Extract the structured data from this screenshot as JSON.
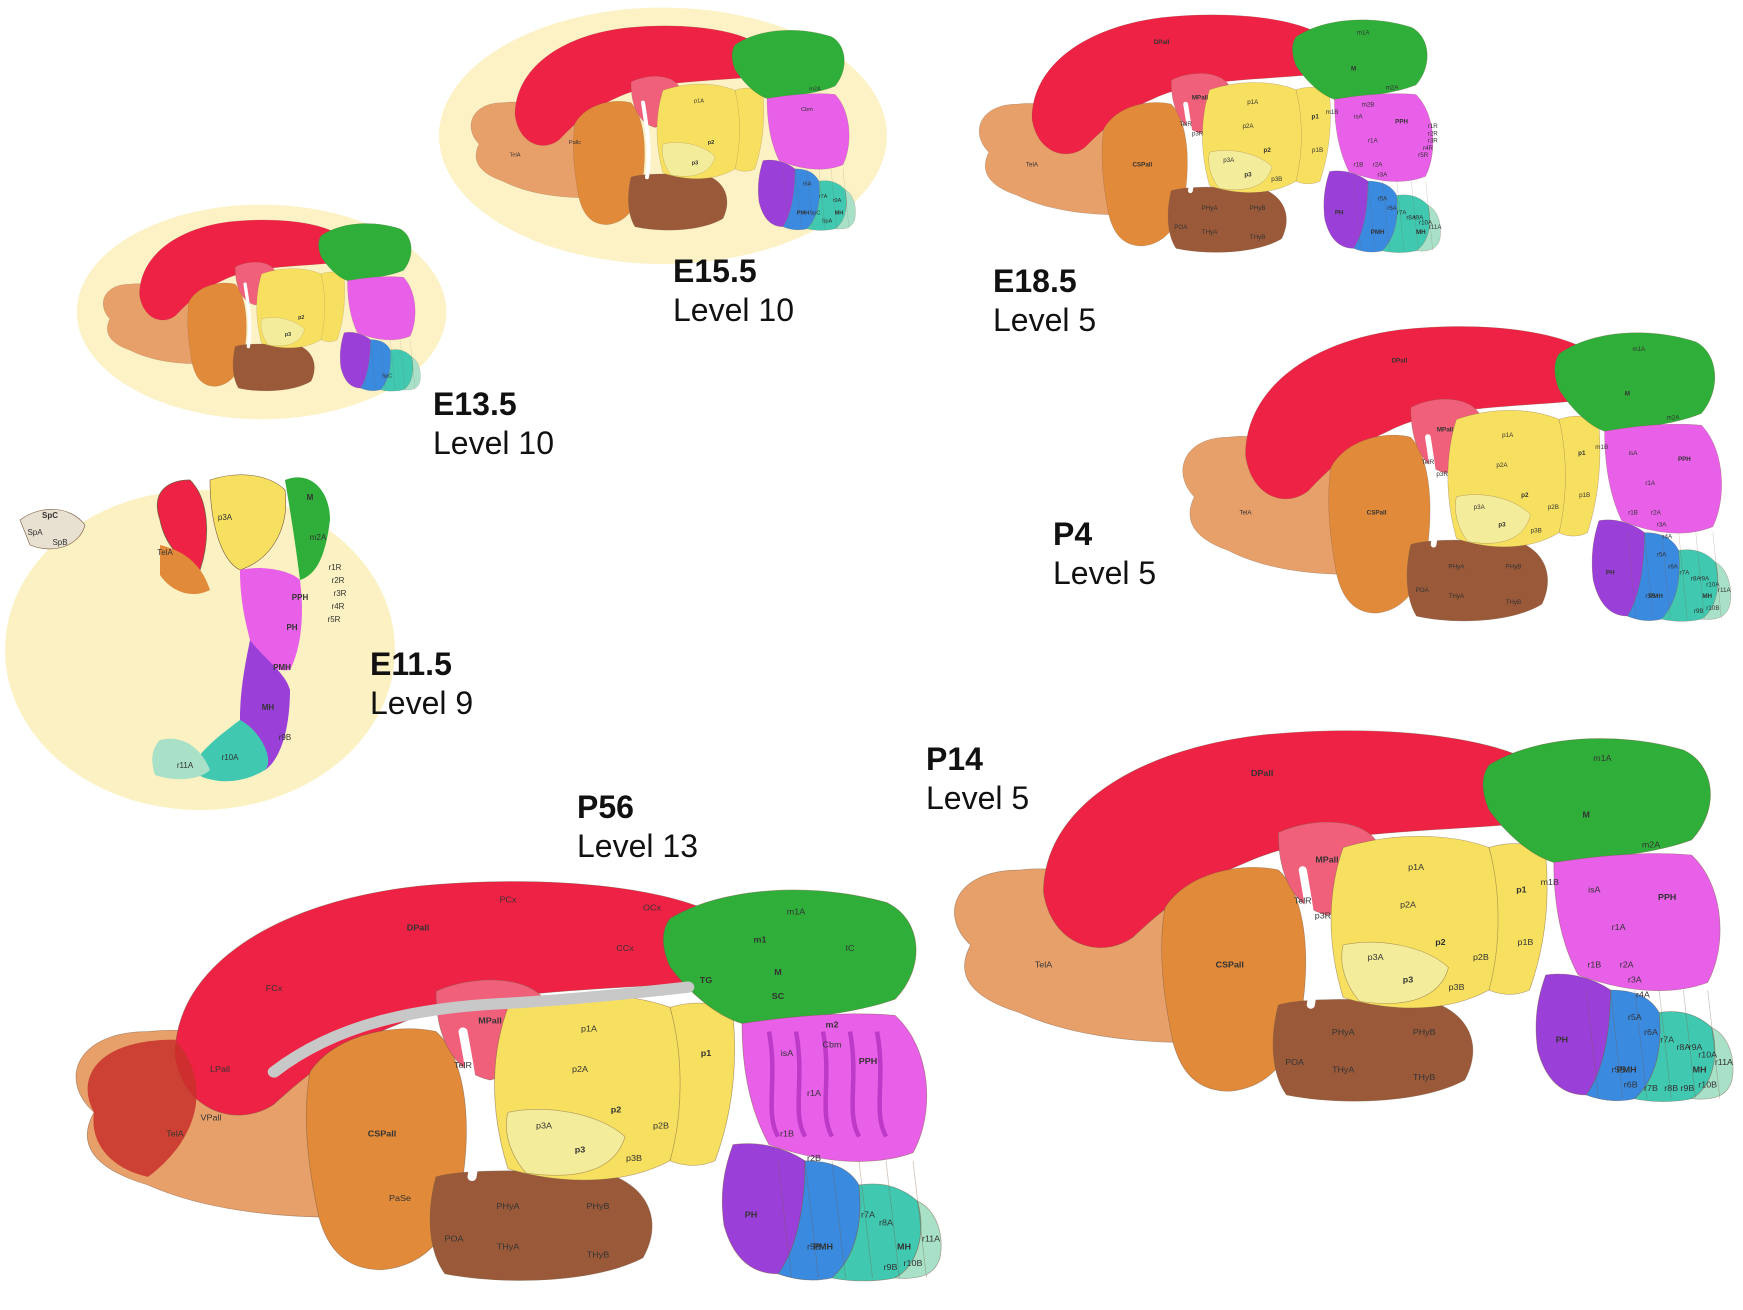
{
  "colors": {
    "pallium_red": "#ee2244",
    "medial_pallium": "#f0607a",
    "subpallium_orange": "#e08a3a",
    "telencephalon_tan": "#e8a06a",
    "hypothalamus_brown": "#9a5a3a",
    "diencephalon_yellow": "#f7e060",
    "prosomere_pale": "#f3ec9a",
    "midbrain_green": "#2fae3a",
    "isthmus_magenta": "#e860e8",
    "hindbrain_violet": "#9a40d8",
    "hindbrain_blue": "#3a8ae0",
    "hindbrain_teal": "#40c8b0",
    "hindbrain_mint": "#a8e0c8",
    "section_background": "#fbefb8",
    "outline": "#7a5a40",
    "ventricle_gray": "#c8c8c8"
  },
  "panels": [
    {
      "id": "e155",
      "stage": "E15.5",
      "level": "Level 10",
      "region_labels": [
        "p1A",
        "p2",
        "p3",
        "m2A",
        "Cbm",
        "r5A",
        "r7A",
        "r9A",
        "PMH",
        "MH",
        "SpC",
        "SpA",
        "Pallc",
        "TelA"
      ]
    },
    {
      "id": "e185",
      "stage": "E18.5",
      "level": "Level 5",
      "region_labels": [
        "DPall",
        "MPall",
        "m1A",
        "M",
        "p1A",
        "p1",
        "p2A",
        "p2",
        "p3A",
        "p3",
        "m2A",
        "m2B",
        "m1B",
        "p1B",
        "isA",
        "PPH",
        "r1A",
        "r1B",
        "TelR",
        "p3R",
        "CSPall",
        "TelA",
        "PHyA",
        "PHyB",
        "THyA",
        "THyB",
        "POA",
        "p3B",
        "r2A",
        "r3A",
        "r5A",
        "r6A",
        "r7A",
        "r8A",
        "r9A",
        "r10A",
        "r11A",
        "r1R",
        "r2R",
        "r3R",
        "r4R",
        "r5R",
        "PH",
        "PMH",
        "MH"
      ]
    },
    {
      "id": "e135",
      "stage": "E13.5",
      "level": "Level 10",
      "region_labels": [
        "p2",
        "p3",
        "SpC"
      ]
    },
    {
      "id": "p4",
      "stage": "P4",
      "level": "Level 5",
      "region_labels": [
        "DPall",
        "MPall",
        "m1A",
        "M",
        "p1A",
        "p1",
        "p2A",
        "p2",
        "p3A",
        "p3",
        "p3B",
        "p2B",
        "p1B",
        "m1B",
        "m2A",
        "isA",
        "PPH",
        "r1A",
        "r1B",
        "TelR",
        "p3R",
        "CSPall",
        "TelA",
        "PHyA",
        "PHyB",
        "THyA",
        "THyB",
        "POA",
        "r2A",
        "r3A",
        "r4A",
        "r5A",
        "r6A",
        "r7A",
        "r8A",
        "r9A",
        "r10A",
        "r11A",
        "r9B",
        "r10B",
        "PH",
        "PMH",
        "MH",
        "r5B"
      ]
    },
    {
      "id": "e115",
      "stage": "E11.5",
      "level": "Level 9",
      "region_labels": [
        "SpC",
        "SpA",
        "SpB",
        "TelA",
        "PPH",
        "PH",
        "PMH",
        "MH",
        "M",
        "m2A",
        "p3A",
        "r1R",
        "r2R",
        "r3R",
        "r4R",
        "r5R",
        "r9B",
        "r10A",
        "r11A"
      ]
    },
    {
      "id": "p14",
      "stage": "P14",
      "level": "Level 5",
      "region_labels": [
        "DPall",
        "MPall",
        "m1A",
        "M",
        "p1A",
        "p1",
        "p2A",
        "p2",
        "p3A",
        "p3",
        "p3B",
        "p2B",
        "p1B",
        "m1B",
        "m2A",
        "isA",
        "PPH",
        "r1A",
        "r1B",
        "TelR",
        "p3R",
        "CSPall",
        "TelA",
        "PHyA",
        "PHyB",
        "THyA",
        "THyB",
        "POA",
        "r2A",
        "r3A",
        "r4A",
        "r5A",
        "r6A",
        "r7A",
        "r8A",
        "r9A",
        "r10A",
        "r11A",
        "r5B",
        "r6B",
        "r7B",
        "r8B",
        "r9B",
        "r10B",
        "PH",
        "PMH",
        "MH"
      ]
    },
    {
      "id": "p56",
      "stage": "P56",
      "level": "Level 13",
      "region_labels": [
        "DPall",
        "FCx",
        "PCx",
        "OCx",
        "CCx",
        "MPall",
        "LPall",
        "VPall",
        "CSPall",
        "PaSe",
        "TelA",
        "TelR",
        "POA",
        "p3",
        "p3A",
        "p2",
        "p2A",
        "p1",
        "p1A",
        "m1",
        "m1A",
        "m2",
        "M",
        "SC",
        "IC",
        "TG",
        "PPH",
        "Cbm",
        "isA",
        "r1A",
        "r1B",
        "r2B",
        "r5B",
        "r7A",
        "r8A",
        "r9B",
        "r10B",
        "r11A",
        "PH",
        "PMH",
        "MH",
        "PHyA",
        "PHyB",
        "THyA",
        "THyB",
        "p3B",
        "p2B"
      ]
    }
  ]
}
